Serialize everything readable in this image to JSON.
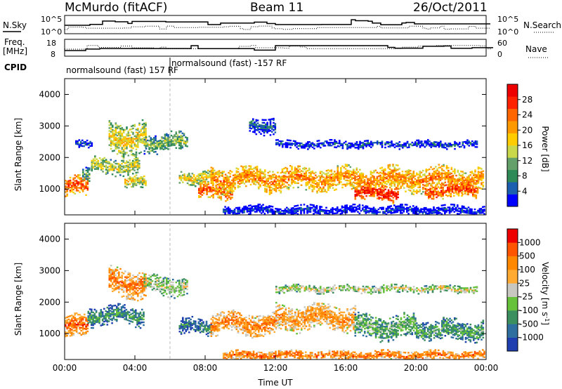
{
  "header": {
    "station": "McMurdo (fitACF)",
    "beam": "Beam 11",
    "date": "26/Oct/2011"
  },
  "summary_panels": {
    "nsky_label": "N.Sky",
    "nsearch_label": "N.Search",
    "freq_label_1": "Freq.",
    "freq_label_2": "[MHz]",
    "nave_label": "Nave",
    "cpid_label": "CPID",
    "noise_ticks_left": [
      "10^5",
      "10^0"
    ],
    "noise_ticks_right": [
      "10^5",
      "10^0"
    ],
    "freq_ticks": [
      "18",
      "8"
    ],
    "nave_ticks": [
      "60",
      "0"
    ],
    "cpid_segments": [
      {
        "label": "normalsound (fast) 157 RF",
        "start_hour": 0
      },
      {
        "label": "normalsound (fast) -157 RF",
        "start_hour": 6
      }
    ]
  },
  "chart_data": [
    {
      "type": "heatmap",
      "title": "",
      "xlabel": "Time UT",
      "ylabel": "Slant Range [km]",
      "x_ticks": [
        "00:00",
        "04:00",
        "08:00",
        "12:00",
        "16:00",
        "20:00",
        "00:00"
      ],
      "x_range_hours": [
        0,
        24
      ],
      "y_ticks": [
        1000,
        2000,
        3000,
        4000
      ],
      "ylim": [
        180,
        4500
      ],
      "colorbar": {
        "label": "Power [dB]",
        "ticks": [
          "4",
          "8",
          "12",
          "16",
          "20",
          "24",
          "28"
        ],
        "colors": [
          "#0000ff",
          "#1c5fb0",
          "#2e8b57",
          "#64a06a",
          "#c8d84a",
          "#ffcc00",
          "#ff9900",
          "#ff6600",
          "#ff2200",
          "#ee0000"
        ]
      },
      "echo_bands": [
        {
          "start": 0.0,
          "end": 1.3,
          "center": 1050,
          "width": 300,
          "level": 0.82
        },
        {
          "start": 1.0,
          "end": 1.4,
          "center": 1500,
          "width": 250,
          "level": 0.35
        },
        {
          "start": 0.6,
          "end": 1.6,
          "center": 2450,
          "width": 120,
          "level": 0.15
        },
        {
          "start": 2.5,
          "end": 4.6,
          "center": 2600,
          "width": 500,
          "level": 0.55
        },
        {
          "start": 1.5,
          "end": 4.2,
          "center": 1700,
          "width": 250,
          "level": 0.5
        },
        {
          "start": 3.4,
          "end": 4.6,
          "center": 1200,
          "width": 200,
          "level": 0.55
        },
        {
          "start": 4.5,
          "end": 7.0,
          "center": 2450,
          "width": 300,
          "level": 0.4
        },
        {
          "start": 6.5,
          "end": 8.4,
          "center": 1350,
          "width": 220,
          "level": 0.55
        },
        {
          "start": 7.6,
          "end": 9.5,
          "center": 900,
          "width": 250,
          "level": 0.78
        },
        {
          "start": 8.3,
          "end": 23.8,
          "center": 1300,
          "width": 380,
          "level": 0.7
        },
        {
          "start": 10.5,
          "end": 12.0,
          "center": 3000,
          "width": 250,
          "level": 0.2
        },
        {
          "start": 12.0,
          "end": 23.5,
          "center": 2400,
          "width": 120,
          "level": 0.15
        },
        {
          "start": 16.5,
          "end": 19.0,
          "center": 850,
          "width": 250,
          "level": 0.9
        },
        {
          "start": 20.5,
          "end": 23.5,
          "center": 950,
          "width": 250,
          "level": 0.8
        },
        {
          "start": 9.0,
          "end": 23.9,
          "center": 300,
          "width": 180,
          "level": 0.08
        }
      ]
    },
    {
      "type": "heatmap",
      "title": "",
      "xlabel": "Time UT",
      "ylabel": "Slant Range [km]",
      "x_ticks": [
        "00:00",
        "04:00",
        "08:00",
        "12:00",
        "16:00",
        "20:00",
        "00:00"
      ],
      "x_range_hours": [
        0,
        24
      ],
      "y_ticks": [
        1000,
        2000,
        3000,
        4000
      ],
      "ylim": [
        180,
        4500
      ],
      "colorbar": {
        "label": "Velocity [m s^-1]",
        "ticks": [
          "1000",
          "500",
          "100",
          "25",
          "-25",
          "-100",
          "-500",
          "-1000"
        ],
        "colors": [
          "#1f3fb0",
          "#2f6fa0",
          "#3c8f5f",
          "#66c23a",
          "#c8c8c0",
          "#ffaa33",
          "#ff8800",
          "#ff5500",
          "#ee0000"
        ]
      },
      "echo_bands": [
        {
          "start": 0.0,
          "end": 1.3,
          "center": 1200,
          "width": 350,
          "level": 0.8
        },
        {
          "start": 1.3,
          "end": 4.5,
          "center": 1550,
          "width": 300,
          "level": 0.3
        },
        {
          "start": 2.5,
          "end": 4.6,
          "center": 2600,
          "width": 450,
          "level": 0.75
        },
        {
          "start": 4.5,
          "end": 7.0,
          "center": 2500,
          "width": 300,
          "level": 0.5
        },
        {
          "start": 6.5,
          "end": 8.3,
          "center": 1200,
          "width": 250,
          "level": 0.25
        },
        {
          "start": 8.3,
          "end": 12.0,
          "center": 1300,
          "width": 350,
          "level": 0.75
        },
        {
          "start": 12.0,
          "end": 16.5,
          "center": 1500,
          "width": 400,
          "level": 0.7
        },
        {
          "start": 16.5,
          "end": 20.0,
          "center": 1200,
          "width": 380,
          "level": 0.4
        },
        {
          "start": 20.0,
          "end": 23.8,
          "center": 1100,
          "width": 320,
          "level": 0.35
        },
        {
          "start": 12.0,
          "end": 23.5,
          "center": 2400,
          "width": 120,
          "level": 0.52
        },
        {
          "start": 9.0,
          "end": 23.9,
          "center": 300,
          "width": 150,
          "level": 0.78
        }
      ]
    }
  ]
}
